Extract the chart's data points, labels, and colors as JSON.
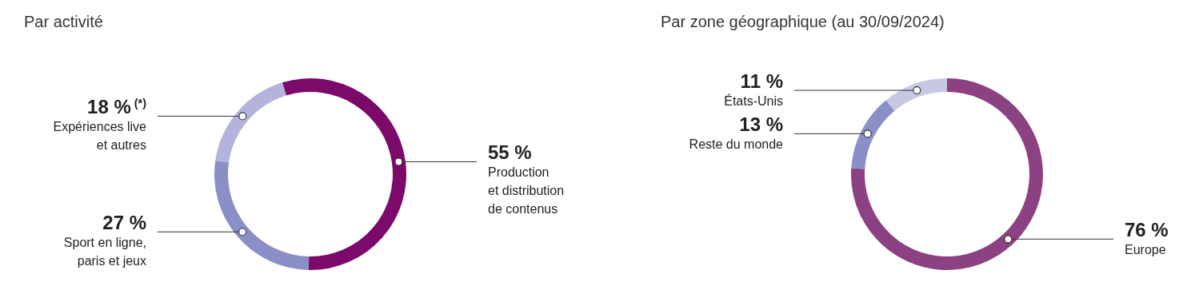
{
  "chart_data": [
    {
      "type": "donut",
      "title": "Par activité",
      "categories": [
        "Production\net distribution\nde contenus",
        "Sport en ligne,\nparis et jeux",
        "Expériences live\net autres"
      ],
      "values": [
        55,
        27,
        18
      ],
      "value_labels": [
        "55 %",
        "27 %",
        "18 %$^{(*)}$"
      ],
      "colors": [
        "#7b0a6a",
        "#8a8fc8",
        "#b3b3dc"
      ]
    },
    {
      "type": "donut",
      "title": "Par zone géographique (au 30/09/2024)",
      "categories": [
        "Europe",
        "Reste du monde",
        "États-Unis"
      ],
      "values": [
        76,
        13,
        11
      ],
      "value_labels": [
        "76 %",
        "13 %",
        "11 %"
      ],
      "colors": [
        "#8c4182",
        "#8a8fc8",
        "#c8c8e4"
      ]
    }
  ]
}
